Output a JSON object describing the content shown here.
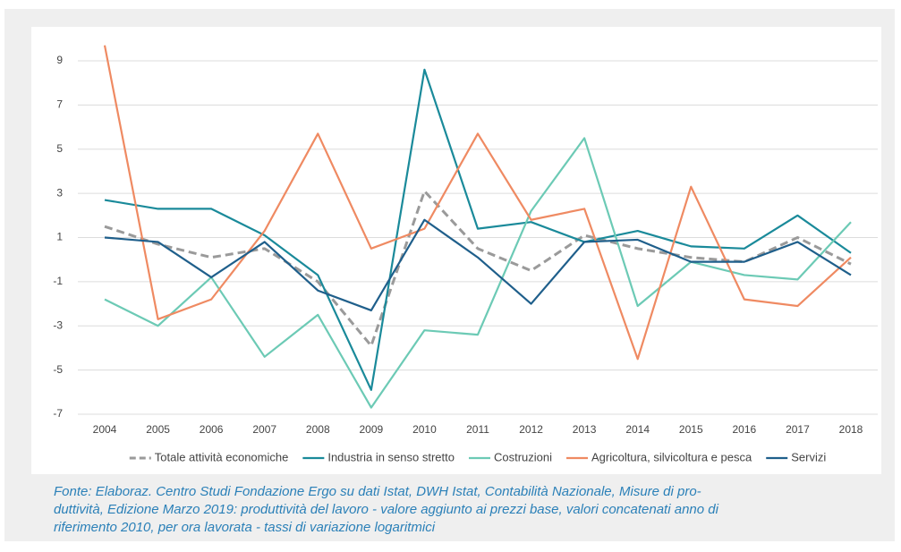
{
  "chart_data": {
    "type": "line",
    "categories": [
      "2004",
      "2005",
      "2006",
      "2007",
      "2008",
      "2009",
      "2010",
      "2011",
      "2012",
      "2013",
      "2014",
      "2015",
      "2016",
      "2017",
      "2018"
    ],
    "series": [
      {
        "name": "Totale attività economiche",
        "color": "#9a9a9a",
        "dashed": true,
        "values": [
          1.5,
          0.7,
          0.1,
          0.5,
          -1.0,
          -3.9,
          3.1,
          0.5,
          -0.5,
          1.1,
          0.5,
          0.1,
          -0.1,
          1.0,
          -0.2
        ]
      },
      {
        "name": "Industria in senso stretto",
        "color": "#1a8a9a",
        "values": [
          2.7,
          2.3,
          2.3,
          1.1,
          -0.7,
          -5.9,
          8.6,
          1.4,
          1.7,
          0.8,
          1.3,
          0.6,
          0.5,
          2.0,
          0.3
        ]
      },
      {
        "name": "Costruzioni",
        "color": "#6ccab5",
        "values": [
          -1.8,
          -3.0,
          -0.8,
          -4.4,
          -2.5,
          -6.7,
          -3.2,
          -3.4,
          2.2,
          5.5,
          -2.1,
          -0.1,
          -0.7,
          -0.9,
          1.7
        ]
      },
      {
        "name": "Agricoltura, silvicoltura e pesca",
        "color": "#ef8a62",
        "values": [
          9.7,
          -2.7,
          -1.8,
          1.3,
          5.7,
          0.5,
          1.4,
          5.7,
          1.8,
          2.3,
          -4.5,
          3.3,
          -1.8,
          -2.1,
          0.1
        ]
      },
      {
        "name": "Servizi",
        "color": "#1f5f8b",
        "values": [
          1.0,
          0.8,
          -0.8,
          0.8,
          -1.4,
          -2.3,
          1.8,
          0.1,
          -2.0,
          0.8,
          0.9,
          -0.1,
          -0.1,
          0.8,
          -0.7
        ]
      }
    ],
    "ylim": [
      -7,
      10
    ],
    "yticks": [
      -7,
      -5,
      -3,
      -1,
      1,
      3,
      5,
      7,
      9
    ],
    "grid": true,
    "legend": "bottom",
    "caption": [
      "Fonte: Elaboraz. Centro Studi Fondazione Ergo su dati Istat, DWH Istat, Contabilità Nazionale, Misure di pro-",
      "duttività, Edizione Marzo 2019: produttività del lavoro - valore aggiunto ai prezzi base, valori concatenati anno di",
      "riferimento 2010, per ora lavorata - tassi di variazione logaritmici"
    ]
  }
}
